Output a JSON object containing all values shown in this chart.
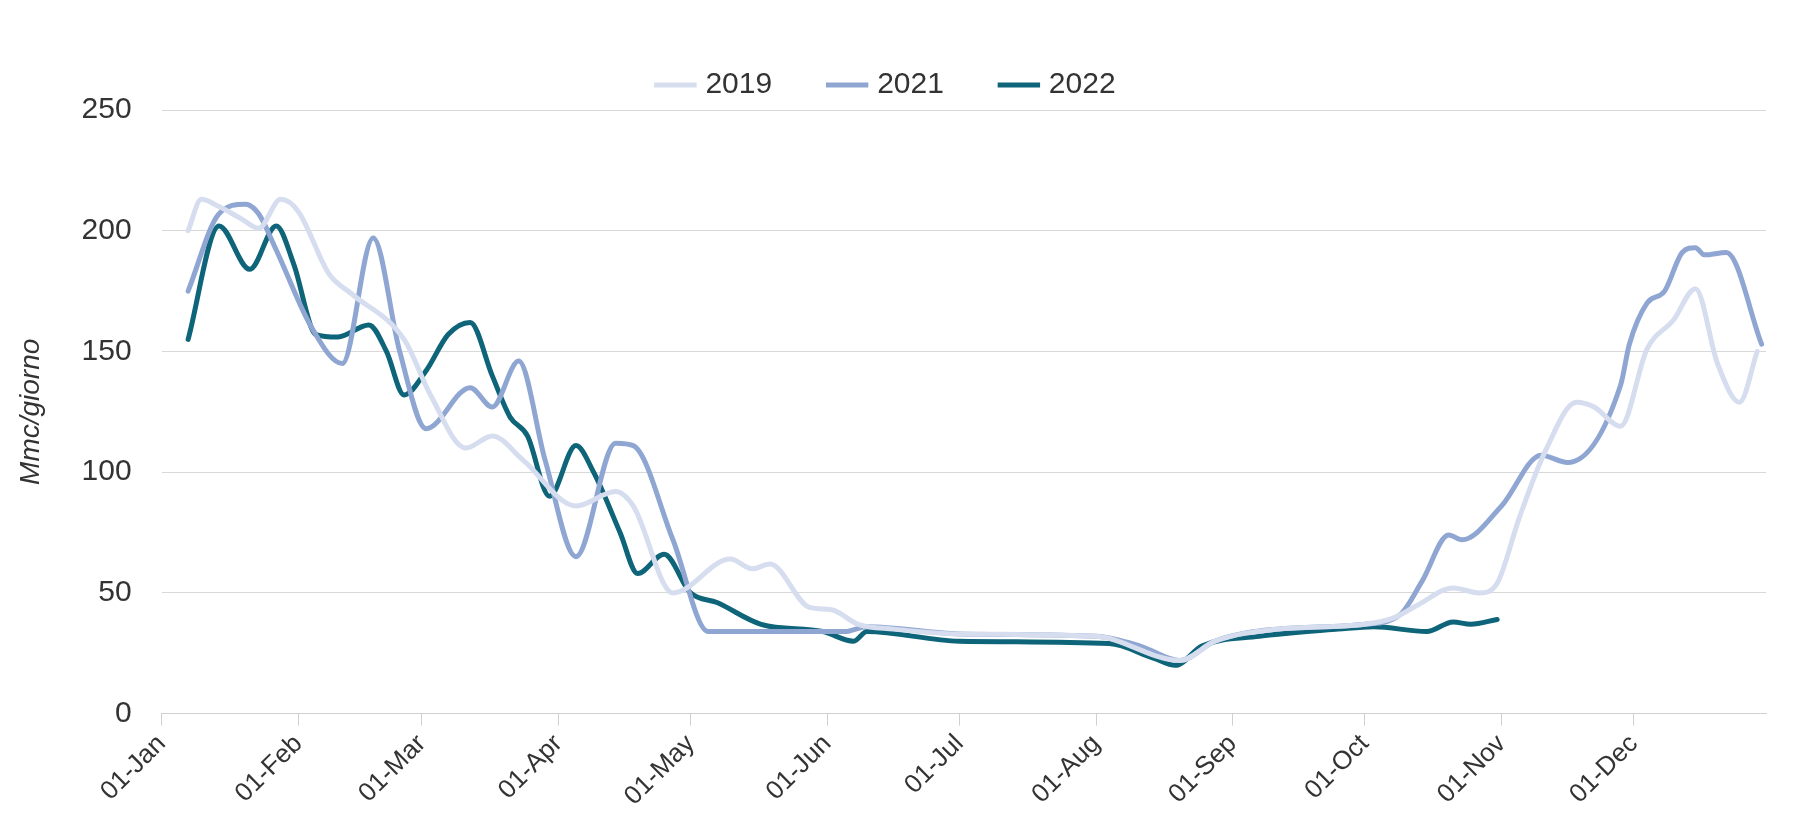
{
  "chart_data": {
    "type": "line",
    "ylabel": "Mmc/giorno",
    "ylim": [
      0,
      250
    ],
    "yticks": [
      0,
      50,
      100,
      150,
      200,
      250
    ],
    "xlim": [
      "--01-01",
      "--12-31"
    ],
    "xticks": [
      {
        "value": "--01-01",
        "label": "01-Jan"
      },
      {
        "value": "--02-01",
        "label": "01-Feb"
      },
      {
        "value": "--03-01",
        "label": "01-Mar"
      },
      {
        "value": "--04-01",
        "label": "01-Apr"
      },
      {
        "value": "--05-01",
        "label": "01-May"
      },
      {
        "value": "--06-01",
        "label": "01-Jun"
      },
      {
        "value": "--07-01",
        "label": "01-Jul"
      },
      {
        "value": "--08-01",
        "label": "01-Aug"
      },
      {
        "value": "--09-01",
        "label": "01-Sep"
      },
      {
        "value": "--10-01",
        "label": "01-Oct"
      },
      {
        "value": "--11-01",
        "label": "01-Nov"
      },
      {
        "value": "--12-01",
        "label": "01-Dec"
      }
    ],
    "grid": "y",
    "legend": "top",
    "marker": "none",
    "line_style": "solid",
    "series": [
      {
        "name": "2019",
        "color": "#d5ddef",
        "x": [
          "--01-07",
          "--01-10",
          "--01-14",
          "--01-19",
          "--01-23",
          "--01-28",
          "--02-01",
          "--02-08",
          "--02-13",
          "--02-25",
          "--03-03",
          "--03-11",
          "--03-17",
          "--03-24",
          "--04-05",
          "--04-14",
          "--04-18",
          "--04-27",
          "--05-10",
          "--05-15",
          "--05-19",
          "--05-28",
          "--06-02",
          "--06-08",
          "--06-16",
          "--07-01",
          "--08-01",
          "--08-20",
          "--08-28",
          "--09-11",
          "--10-01",
          "--10-08",
          "--10-13",
          "--10-21",
          "--10-27",
          "--10-31",
          "--11-05",
          "--11-11",
          "--11-18",
          "--11-22",
          "--11-28",
          "--12-04",
          "--12-10",
          "--12-15",
          "--12-20",
          "--12-25",
          "--12-29"
        ],
        "values": [
          200,
          213,
          210,
          205,
          201,
          213,
          208,
          182,
          174,
          155,
          132,
          110,
          115,
          105,
          86,
          92,
          86,
          50,
          64,
          60,
          62,
          44,
          43,
          37,
          35,
          33,
          32,
          22,
          30,
          35,
          37,
          40,
          45,
          52,
          50,
          54,
          81,
          109,
          129,
          127,
          119,
          151,
          163,
          176,
          145,
          129,
          150
        ]
      },
      {
        "name": "2021",
        "color": "#8fa6d3",
        "x": [
          "--01-07",
          "--01-14",
          "--01-20",
          "--01-23",
          "--01-27",
          "--02-04",
          "--02-11",
          "--02-18",
          "--02-24",
          "--03-02",
          "--03-12",
          "--03-17",
          "--03-23",
          "--03-29",
          "--04-05",
          "--04-14",
          "--04-18",
          "--04-27",
          "--05-05",
          "--06-05",
          "--06-10",
          "--07-01",
          "--08-01",
          "--08-11",
          "--08-20",
          "--08-28",
          "--09-11",
          "--10-01",
          "--10-09",
          "--10-14",
          "--10-20",
          "--10-23",
          "--11-01",
          "--11-10",
          "--11-16",
          "--11-28",
          "--11-30",
          "--12-04",
          "--12-08",
          "--12-12",
          "--12-15",
          "--12-17",
          "--12-22",
          "--12-30"
        ],
        "values": [
          175,
          207,
          211,
          207,
          192,
          160,
          145,
          197,
          150,
          118,
          135,
          127,
          146,
          105,
          65,
          112,
          111,
          72,
          34,
          34,
          36,
          33,
          32,
          28,
          22,
          30,
          35,
          37,
          41,
          55,
          74,
          72,
          86,
          107,
          104,
          136,
          153,
          170,
          175,
          191,
          193,
          190,
          191,
          153
        ]
      },
      {
        "name": "2022",
        "color": "#0e6478",
        "x": [
          "--01-07",
          "--01-14",
          "--01-21",
          "--01-27",
          "--01-31",
          "--02-05",
          "--02-10",
          "--02-17",
          "--02-21",
          "--02-25",
          "--03-02",
          "--03-07",
          "--03-12",
          "--03-17",
          "--03-21",
          "--03-25",
          "--03-30",
          "--04-05",
          "--04-09",
          "--04-15",
          "--04-19",
          "--04-25",
          "--05-01",
          "--05-07",
          "--05-17",
          "--05-31",
          "--06-07",
          "--06-10",
          "--07-01",
          "--08-04",
          "--08-14",
          "--08-19",
          "--08-25",
          "--09-07",
          "--09-25",
          "--10-03",
          "--10-15",
          "--10-21",
          "--10-25",
          "--10-31"
        ],
        "values": [
          155,
          202,
          184,
          202,
          186,
          157,
          156,
          161,
          150,
          132,
          142,
          157,
          162,
          140,
          123,
          115,
          90,
          111,
          100,
          75,
          58,
          66,
          50,
          46,
          37,
          34,
          30,
          34,
          30,
          29,
          23,
          20,
          28,
          32,
          35,
          36,
          34,
          38,
          37,
          39
        ]
      }
    ]
  }
}
